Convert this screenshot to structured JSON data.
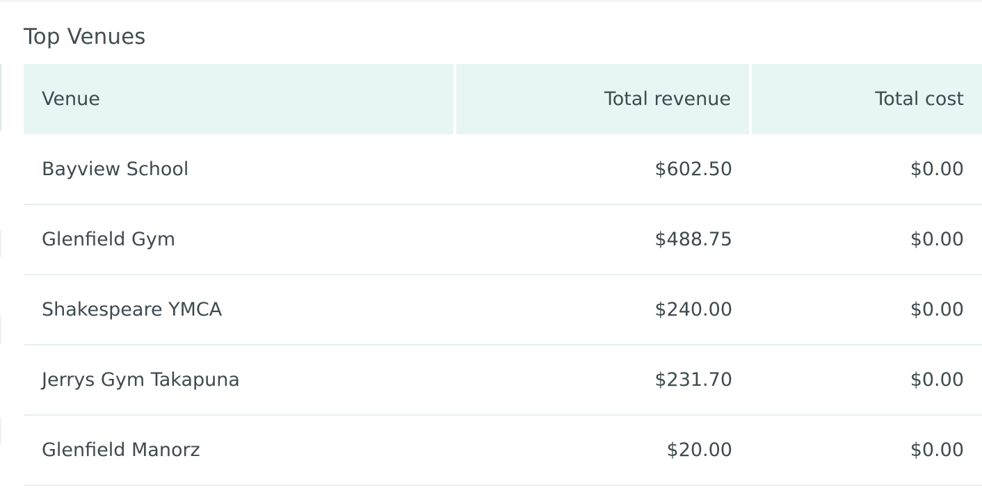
{
  "panel": {
    "title": "Top Venues"
  },
  "table": {
    "columns": [
      "Venue",
      "Total revenue",
      "Total cost"
    ],
    "rows": [
      {
        "venue": "Bayview School",
        "revenue": "$602.50",
        "cost": "$0.00"
      },
      {
        "venue": "Glenfield Gym",
        "revenue": "$488.75",
        "cost": "$0.00"
      },
      {
        "venue": "Shakespeare YMCA",
        "revenue": "$240.00",
        "cost": "$0.00"
      },
      {
        "venue": "Jerrys Gym Takapuna",
        "revenue": "$231.70",
        "cost": "$0.00"
      },
      {
        "venue": "Glenfield Manorz",
        "revenue": "$20.00",
        "cost": "$0.00"
      }
    ]
  },
  "colors": {
    "header_bg": "#e8f5f5",
    "text": "#3f4a4f",
    "row_divider": "#e6eff0"
  }
}
